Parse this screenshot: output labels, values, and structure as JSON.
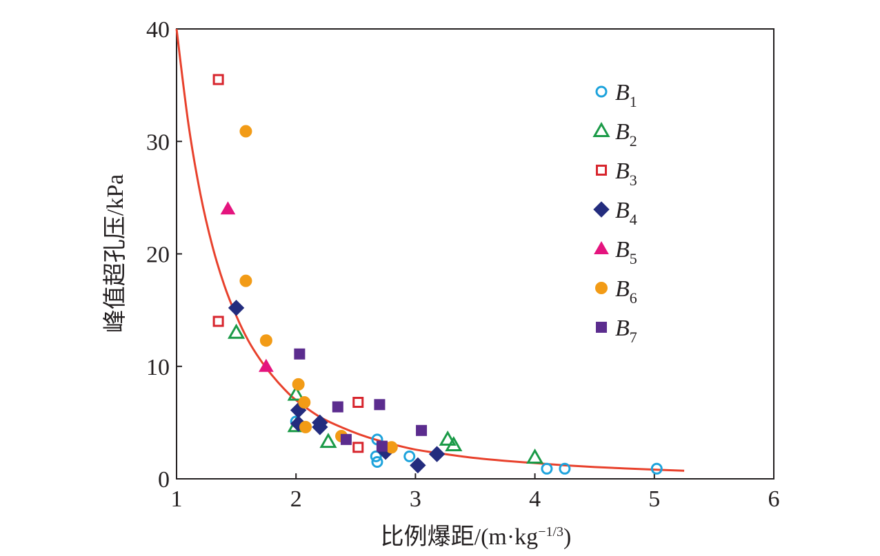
{
  "chart_data": {
    "type": "scatter",
    "xlabel": "比例爆距/(m·kg",
    "xlabel_exp": "−1/3",
    "xlabel_close": ")",
    "ylabel": "峰值超孔压/kPa",
    "xlim": [
      1,
      6
    ],
    "ylim": [
      0,
      40
    ],
    "x_ticks": [
      "1",
      "2",
      "3",
      "4",
      "5",
      "6"
    ],
    "y_ticks": [
      "0",
      "10",
      "20",
      "30",
      "40"
    ],
    "grid": false,
    "legend_position": "top-right",
    "fit_curve": {
      "color": "#e8412c",
      "x": [
        1.0,
        1.1,
        1.2,
        1.3,
        1.4,
        1.5,
        1.6,
        1.7,
        1.8,
        1.9,
        2.0,
        2.2,
        2.4,
        2.6,
        2.8,
        3.0,
        3.25,
        3.5,
        3.75,
        4.0,
        4.25,
        4.5,
        4.75,
        5.0,
        5.25
      ],
      "y": [
        40.0,
        31.5,
        25.3,
        20.7,
        17.2,
        14.5,
        12.3,
        10.6,
        9.2,
        8.0,
        7.0,
        5.5,
        4.5,
        3.7,
        3.1,
        2.6,
        2.2,
        1.85,
        1.6,
        1.4,
        1.2,
        1.05,
        0.93,
        0.82,
        0.72
      ]
    },
    "series": [
      {
        "name": "B",
        "sub": "1",
        "marker": "circle-open",
        "color": "#1da3dc",
        "x": [
          2.0,
          2.68,
          2.67,
          2.68,
          2.95,
          4.1,
          4.25,
          5.02
        ],
        "y": [
          5.1,
          3.5,
          2.0,
          1.5,
          2.0,
          0.9,
          0.9,
          0.9
        ]
      },
      {
        "name": "B",
        "sub": "2",
        "marker": "triangle-open",
        "color": "#1a9a47",
        "x": [
          1.5,
          2.0,
          2.0,
          2.27,
          3.27,
          3.32,
          4.0
        ],
        "y": [
          13.0,
          7.5,
          4.7,
          3.3,
          3.5,
          3.0,
          1.9
        ]
      },
      {
        "name": "B",
        "sub": "3",
        "marker": "square-open",
        "color": "#d7252d",
        "x": [
          1.35,
          1.35,
          2.52,
          2.52
        ],
        "y": [
          35.5,
          14.0,
          6.8,
          2.8
        ]
      },
      {
        "name": "B",
        "sub": "4",
        "marker": "diamond",
        "color": "#232c7e",
        "x": [
          1.5,
          2.02,
          2.02,
          2.2,
          2.2,
          2.75,
          3.02,
          3.18
        ],
        "y": [
          15.2,
          6.1,
          4.9,
          5.0,
          4.6,
          2.4,
          1.2,
          2.2
        ]
      },
      {
        "name": "B",
        "sub": "5",
        "marker": "triangle",
        "color": "#e4147e",
        "x": [
          1.43,
          1.75
        ],
        "y": [
          24.0,
          10.0
        ]
      },
      {
        "name": "B",
        "sub": "6",
        "marker": "circle",
        "color": "#f29b16",
        "x": [
          1.58,
          1.58,
          1.75,
          2.02,
          2.07,
          2.08,
          2.38,
          2.8
        ],
        "y": [
          30.9,
          17.6,
          12.3,
          8.4,
          6.8,
          4.6,
          3.8,
          2.8
        ]
      },
      {
        "name": "B",
        "sub": "7",
        "marker": "square",
        "color": "#5b2c8e",
        "x": [
          2.03,
          2.35,
          2.42,
          2.7,
          2.72,
          3.05
        ],
        "y": [
          11.1,
          6.4,
          3.5,
          6.6,
          2.9,
          4.3
        ]
      }
    ]
  }
}
